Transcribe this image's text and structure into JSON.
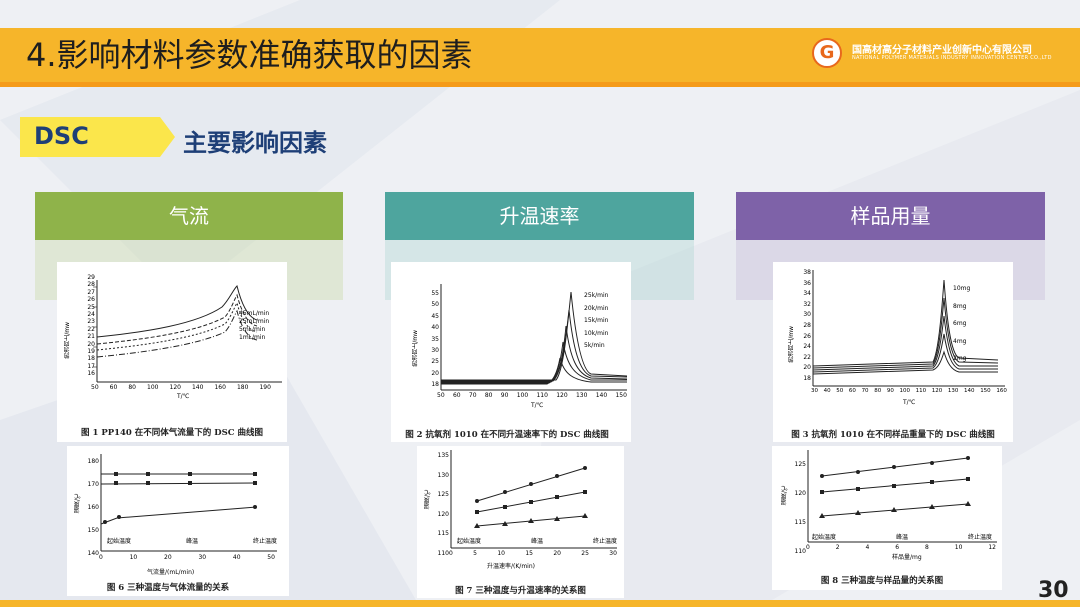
{
  "slide": {
    "title": "4.影响材料参数准确获取的因素",
    "page_number": "30",
    "logo": {
      "mark": "G",
      "name_cn": "国高材高分子材料产业创新中心有限公司",
      "name_en": "NATIONAL POLYMER MATERIALS INDUSTRY INNOVATION CENTER CO.,LTD"
    },
    "tag": "DSC",
    "subtitle": "主要影响因素",
    "colors": {
      "title_bar": "#f6b52a",
      "tag": "#fbe64b",
      "subtitle": "#1e3f77",
      "airflow": "#8fb34a",
      "heating_rate": "#4ea59e",
      "sample_mass": "#7e62a8"
    }
  },
  "columns": [
    {
      "header": "气流",
      "figure_top": {
        "caption": "图 1 PP140 在不同体气流量下的 DSC 曲线图",
        "xlabel": "T/℃",
        "ylabel": "热流向上/mw",
        "x_ticks": [
          "50",
          "60",
          "80",
          "100",
          "120",
          "140",
          "160",
          "180",
          "190"
        ],
        "y_ticks": [
          "29",
          "28",
          "27",
          "26",
          "25",
          "24",
          "23",
          "22",
          "21",
          "20",
          "19",
          "18",
          "17",
          "16"
        ],
        "legend": [
          "45mL/min",
          "25mL/min",
          "5mL/min",
          "1mL/min"
        ]
      },
      "figure_bottom": {
        "caption": "图 6 三种温度与气体流量的关系",
        "xlabel": "气流量/(mL/min)",
        "ylabel": "温度/℃",
        "x_ticks": [
          "0",
          "10",
          "20",
          "30",
          "40",
          "50"
        ],
        "y_ticks": [
          "180",
          "170",
          "160",
          "150",
          "140"
        ],
        "legend": [
          "起始温度",
          "峰温",
          "终止温度"
        ]
      }
    },
    {
      "header": "升温速率",
      "figure_top": {
        "caption": "图 2 抗氧剂 1010 在不同升温速率下的 DSC 曲线图",
        "xlabel": "T/℃",
        "ylabel": "热流向上/mw",
        "x_ticks": [
          "50",
          "60",
          "70",
          "80",
          "90",
          "100",
          "110",
          "120",
          "130",
          "140",
          "150"
        ],
        "y_ticks": [
          "55",
          "50",
          "45",
          "40",
          "35",
          "30",
          "25",
          "20",
          "18"
        ],
        "legend": [
          "25k/min",
          "20k/min",
          "15k/min",
          "10k/min",
          "5k/min"
        ]
      },
      "figure_bottom": {
        "caption": "图 7 三种温度与升温速率的关系图",
        "xlabel": "升温速率/(K/min)",
        "ylabel": "温度/℃",
        "x_ticks": [
          "0",
          "5",
          "10",
          "15",
          "20",
          "25",
          "30"
        ],
        "y_ticks": [
          "135",
          "130",
          "125",
          "120",
          "115",
          "110"
        ],
        "legend": [
          "起始温度",
          "峰温",
          "终止温度"
        ]
      }
    },
    {
      "header": "样品用量",
      "figure_top": {
        "caption": "图 3 抗氧剂 1010 在不同样品重量下的 DSC 曲线图",
        "xlabel": "T/℃",
        "ylabel": "热流向上/mw",
        "x_ticks": [
          "30",
          "40",
          "50",
          "60",
          "70",
          "80",
          "90",
          "100",
          "110",
          "120",
          "130",
          "140",
          "150",
          "160"
        ],
        "y_ticks": [
          "38",
          "36",
          "34",
          "32",
          "30",
          "28",
          "26",
          "24",
          "22",
          "20",
          "18"
        ],
        "legend": [
          "10mg",
          "8mg",
          "6mg",
          "4mg",
          "2mg"
        ]
      },
      "figure_bottom": {
        "caption": "图 8 三种温度与样品量的关系图",
        "xlabel": "样品量/mg",
        "ylabel": "温度/℃",
        "x_ticks": [
          "0",
          "2",
          "4",
          "6",
          "8",
          "10",
          "12"
        ],
        "y_ticks": [
          "125",
          "120",
          "115",
          "110"
        ],
        "legend": [
          "起始温度",
          "峰温",
          "终止温度"
        ]
      }
    }
  ]
}
